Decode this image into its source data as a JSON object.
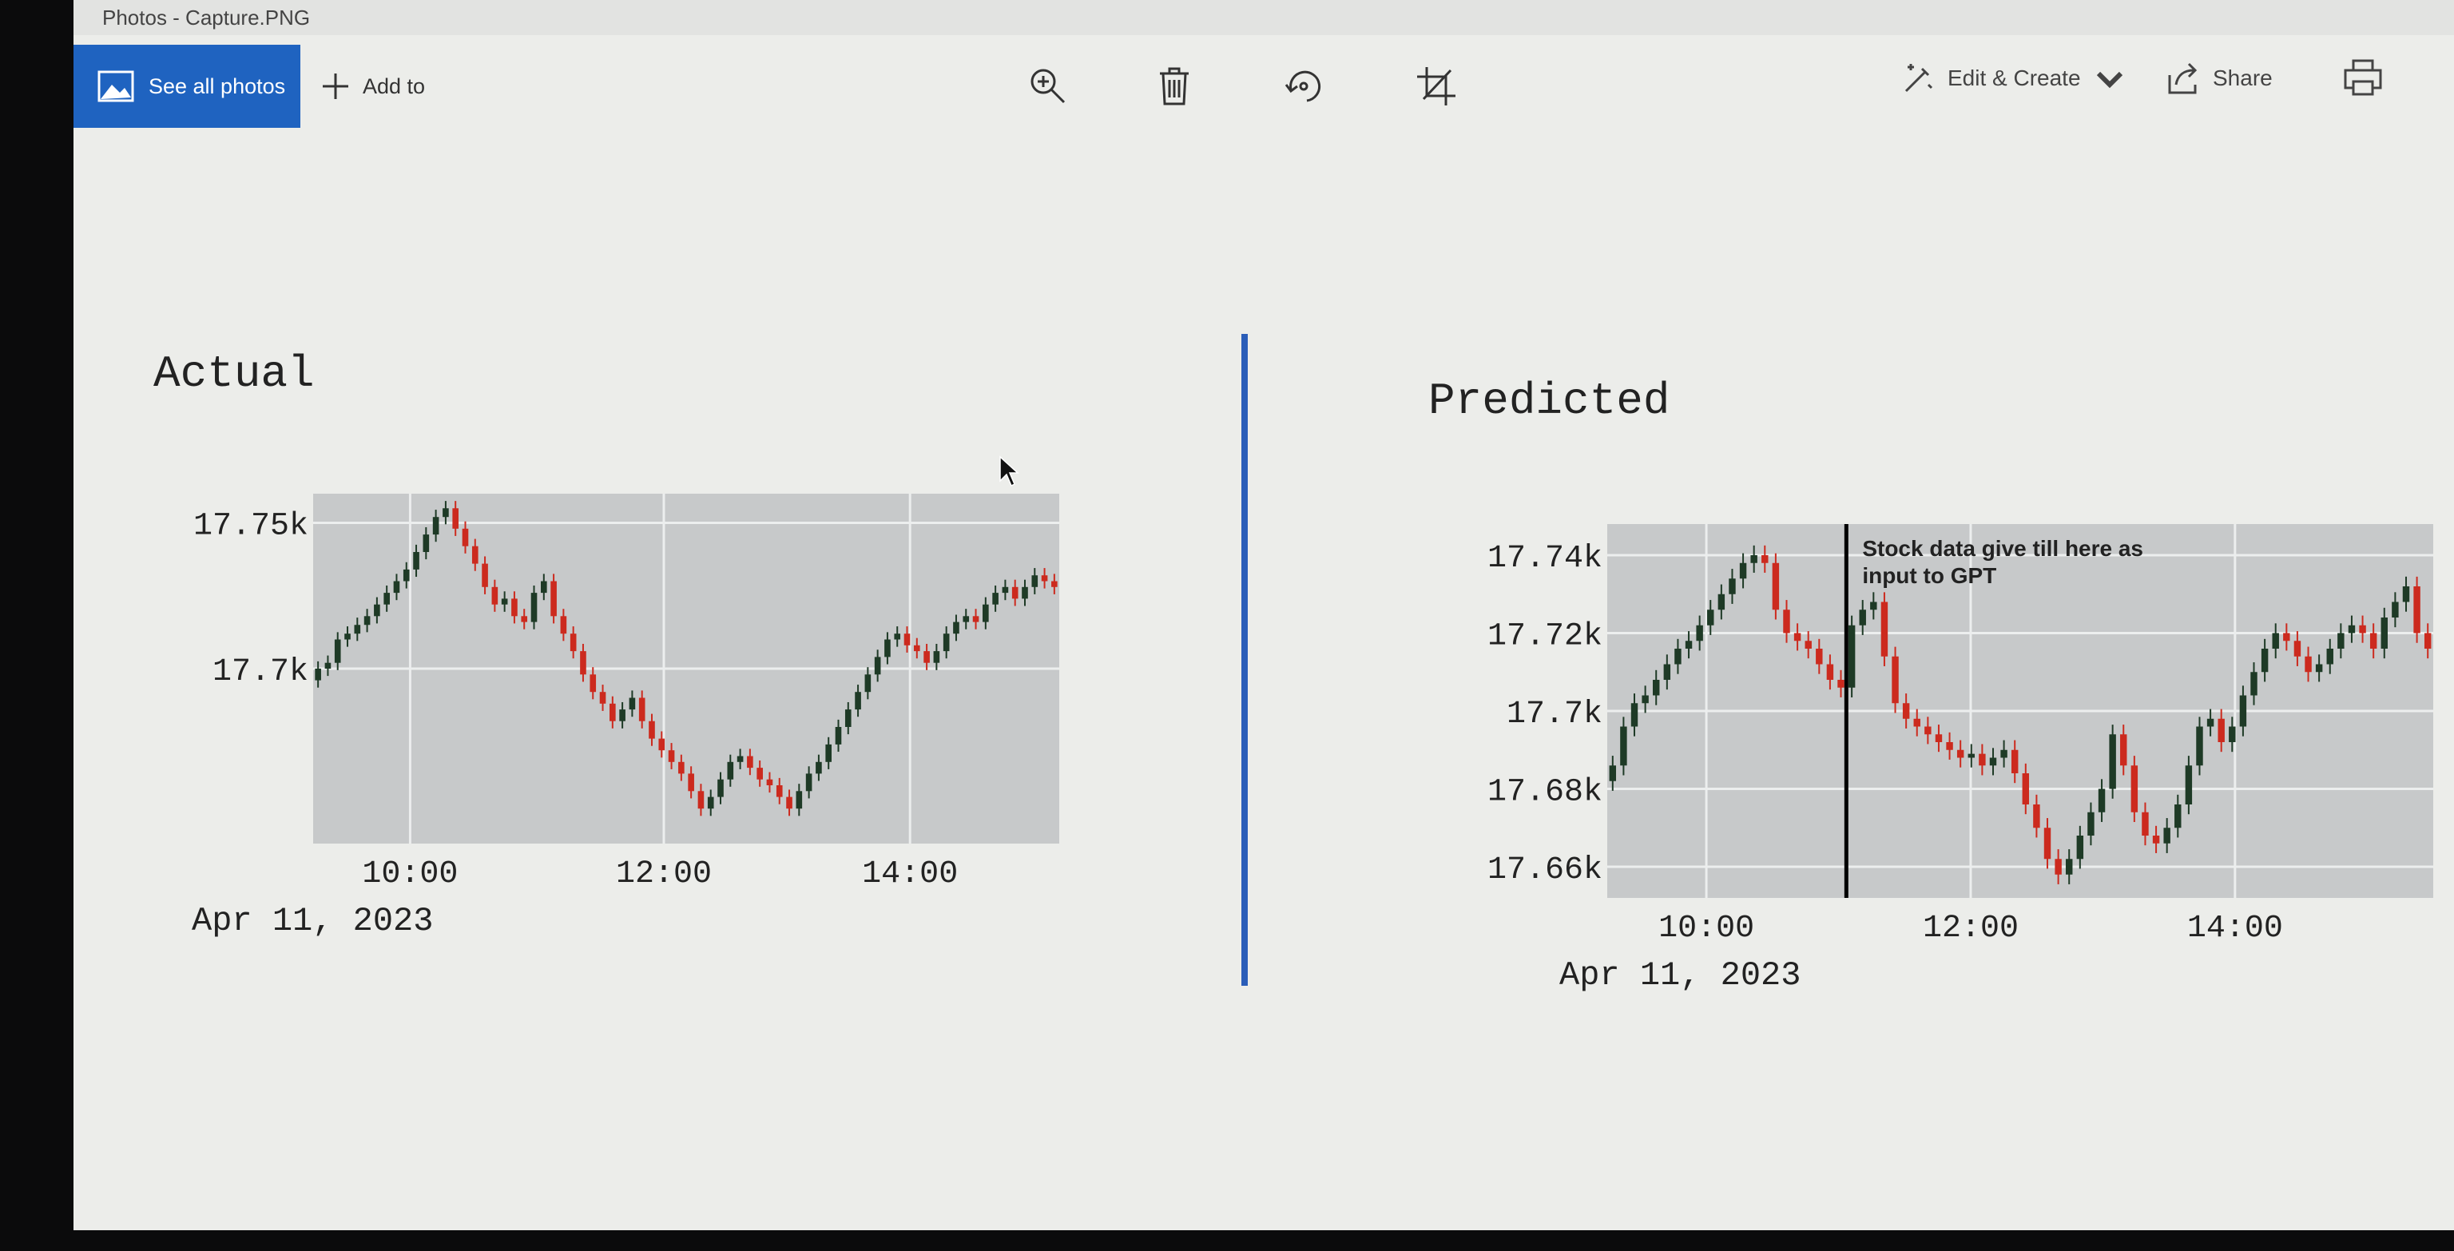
{
  "window": {
    "title": "Photos - Capture.PNG"
  },
  "toolbar": {
    "see_all_label": "See all photos",
    "add_to_label": "Add to",
    "edit_create_label": "Edit & Create",
    "share_label": "Share",
    "icons": [
      "zoom-in-icon",
      "delete-icon",
      "rotate-icon",
      "crop-icon",
      "print-icon"
    ]
  },
  "colors": {
    "accent": "#1f63c0",
    "bull": "#1e3a26",
    "bear": "#cc2a1e",
    "plot_bg": "#c7c9ca",
    "divider": "#2a5db8"
  },
  "chart_data": [
    {
      "type": "candlestick",
      "title": "Actual",
      "x_tick_labels": [
        "10:00",
        "12:00",
        "14:00"
      ],
      "x_date_label": "Apr 11, 2023",
      "y_tick_labels": [
        "17.75k",
        "17.7k"
      ],
      "ylim": [
        17640,
        17760
      ],
      "grid": true,
      "closes": [
        17700,
        17702,
        17710,
        17712,
        17715,
        17718,
        17722,
        17726,
        17730,
        17734,
        17740,
        17746,
        17752,
        17755,
        17748,
        17742,
        17736,
        17728,
        17722,
        17724,
        17718,
        17716,
        17726,
        17730,
        17718,
        17712,
        17706,
        17698,
        17692,
        17688,
        17682,
        17686,
        17690,
        17682,
        17676,
        17672,
        17668,
        17664,
        17658,
        17652,
        17656,
        17662,
        17668,
        17670,
        17666,
        17662,
        17660,
        17656,
        17652,
        17658,
        17664,
        17668,
        17674,
        17680,
        17686,
        17692,
        17698,
        17704,
        17710,
        17712,
        17708,
        17706,
        17702,
        17706,
        17712,
        17716,
        17718,
        17716,
        17722,
        17726,
        17728,
        17724,
        17728,
        17732,
        17730,
        17728
      ]
    },
    {
      "type": "candlestick",
      "title": "Predicted",
      "x_tick_labels": [
        "10:00",
        "12:00",
        "14:00"
      ],
      "x_date_label": "Apr 11, 2023",
      "y_tick_labels": [
        "17.74k",
        "17.72k",
        "17.7k",
        "17.68k",
        "17.66k"
      ],
      "ylim": [
        17652,
        17748
      ],
      "grid": true,
      "annotation": "Stock data give till here as input to GPT",
      "closes": [
        17686,
        17696,
        17702,
        17704,
        17708,
        17712,
        17716,
        17718,
        17722,
        17726,
        17730,
        17734,
        17738,
        17740,
        17738,
        17726,
        17720,
        17718,
        17716,
        17712,
        17708,
        17706,
        17722,
        17726,
        17728,
        17714,
        17702,
        17698,
        17696,
        17694,
        17692,
        17690,
        17688,
        17689,
        17686,
        17688,
        17690,
        17684,
        17676,
        17670,
        17662,
        17658,
        17662,
        17668,
        17674,
        17680,
        17694,
        17686,
        17674,
        17668,
        17666,
        17670,
        17676,
        17686,
        17696,
        17698,
        17692,
        17696,
        17704,
        17710,
        17716,
        17720,
        17718,
        17714,
        17710,
        17712,
        17716,
        17720,
        17722,
        17720,
        17716,
        17724,
        17728,
        17732,
        17720,
        17716
      ]
    }
  ]
}
